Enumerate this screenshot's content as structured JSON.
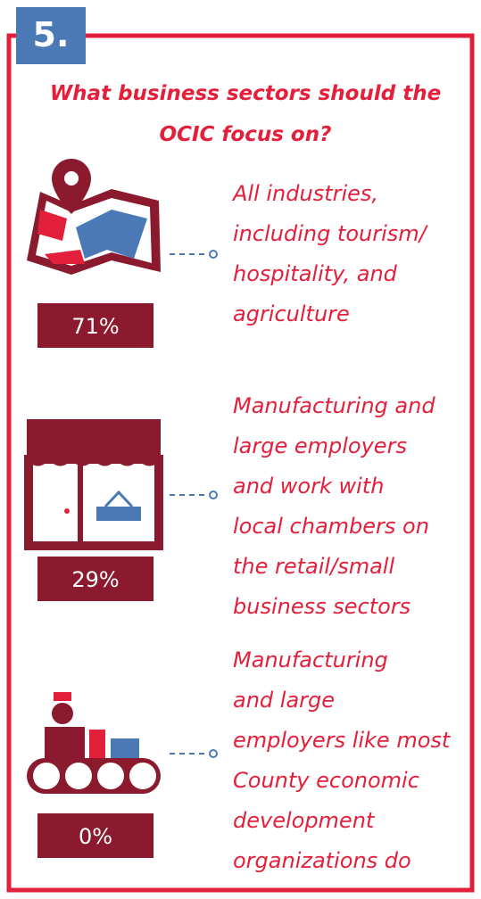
{
  "header": {
    "number": "5.",
    "title_lines": [
      "What business sectors should the",
      "OCIC focus on?"
    ]
  },
  "items": [
    {
      "percent": "71%",
      "lines": [
        "All industries,",
        "including tourism/",
        "hospitality, and",
        "agriculture"
      ]
    },
    {
      "percent": "29%",
      "lines": [
        "Manufacturing and",
        "large employers",
        "and work with",
        "local chambers on",
        "the retail/small",
        "business sectors"
      ]
    },
    {
      "percent": "0%",
      "lines": [
        "Manufacturing",
        "and large",
        "employers like most",
        "County economic",
        "development",
        "organizations do"
      ]
    }
  ]
}
